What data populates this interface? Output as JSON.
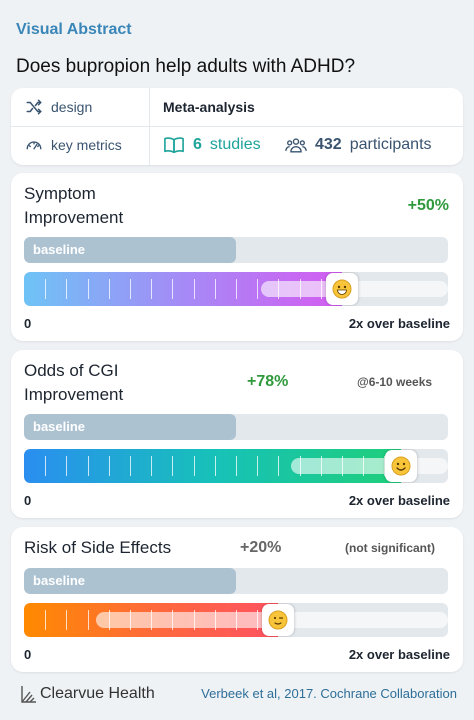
{
  "header": {
    "label": "Visual Abstract",
    "question": "Does bupropion help adults with ADHD?"
  },
  "summary": {
    "design_label": "design",
    "design_value": "Meta-analysis",
    "metrics_label": "key metrics",
    "studies_count": "6",
    "studies_label": "studies",
    "participants_count": "432",
    "participants_label": "participants"
  },
  "metrics": [
    {
      "title": "Symptom Improvement",
      "percent": "+50%",
      "note": "",
      "baseline_label": "baseline",
      "scale_min": "0",
      "scale_max": "2x over baseline",
      "baseline_fraction": 0.5,
      "effect_fraction": 0.75,
      "ci_low_fraction": 0.56,
      "ci_high_fraction": 1.0,
      "marker": "grinning-face-icon",
      "colors": [
        "#6ec3f6",
        "#a58af6",
        "#d45cf1"
      ],
      "percent_color": "#2f9a3c"
    },
    {
      "title": "Odds of CGI Improvement",
      "percent": "+78%",
      "note": "@6-10 weeks",
      "baseline_label": "baseline",
      "scale_min": "0",
      "scale_max": "2x over baseline",
      "baseline_fraction": 0.5,
      "effect_fraction": 0.89,
      "ci_low_fraction": 0.63,
      "ci_high_fraction": 1.0,
      "marker": "smiling-face-icon",
      "colors": [
        "#2a8ef0",
        "#17c1b9",
        "#1fcf7a"
      ],
      "percent_color": "#2f9a3c"
    },
    {
      "title": "Risk of Side Effects",
      "percent": "+20%",
      "note": "(not significant)",
      "baseline_label": "baseline",
      "scale_min": "0",
      "scale_max": "2x over baseline",
      "baseline_fraction": 0.5,
      "effect_fraction": 0.6,
      "ci_low_fraction": 0.17,
      "ci_high_fraction": 1.0,
      "marker": "slightly-smiling-face-icon",
      "colors": [
        "#ff8a00",
        "#ff6a3a",
        "#ff5262"
      ],
      "percent_color": "#666666"
    }
  ],
  "footer": {
    "brand": "Clearvue Health",
    "citation": "Verbeek et al, 2017. Cochrane Collaboration"
  }
}
